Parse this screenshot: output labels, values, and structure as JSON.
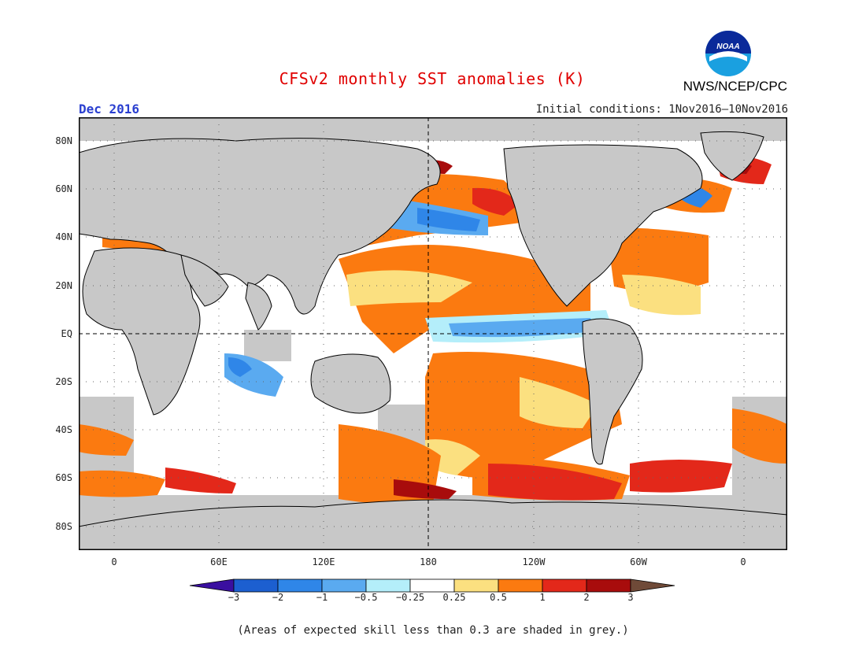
{
  "header": {
    "title": "CFSv2 monthly SST anomalies (K)",
    "month": "Dec 2016",
    "initial_conditions": "Initial conditions: 1Nov2016–10Nov2016",
    "agency": "NWS/NCEP/CPC",
    "logo_text": "NOAA"
  },
  "map": {
    "lat_labels": [
      "80N",
      "60N",
      "40N",
      "20N",
      "EQ",
      "20S",
      "40S",
      "60S",
      "80S"
    ],
    "lon_labels": [
      "0",
      "60E",
      "120E",
      "180",
      "120W",
      "60W",
      "0"
    ],
    "colors": {
      "skill_grey": "#c8c8c8",
      "land": "#c8c8c8",
      "coast": "#000000"
    }
  },
  "colorbar": {
    "ticks": [
      "−3",
      "−2",
      "−1",
      "−0.5",
      "−0.25",
      "0.25",
      "0.5",
      "1",
      "2",
      "3"
    ],
    "colors": [
      "#3a0fa0",
      "#1c5fd0",
      "#2f86e8",
      "#5aaaf0",
      "#b4eefa",
      "#ffffff",
      "#fbe080",
      "#fb7a10",
      "#e3281a",
      "#a80c0c",
      "#6f4a38"
    ]
  },
  "footnote": "(Areas of expected skill less than 0.3 are shaded in grey.)"
}
